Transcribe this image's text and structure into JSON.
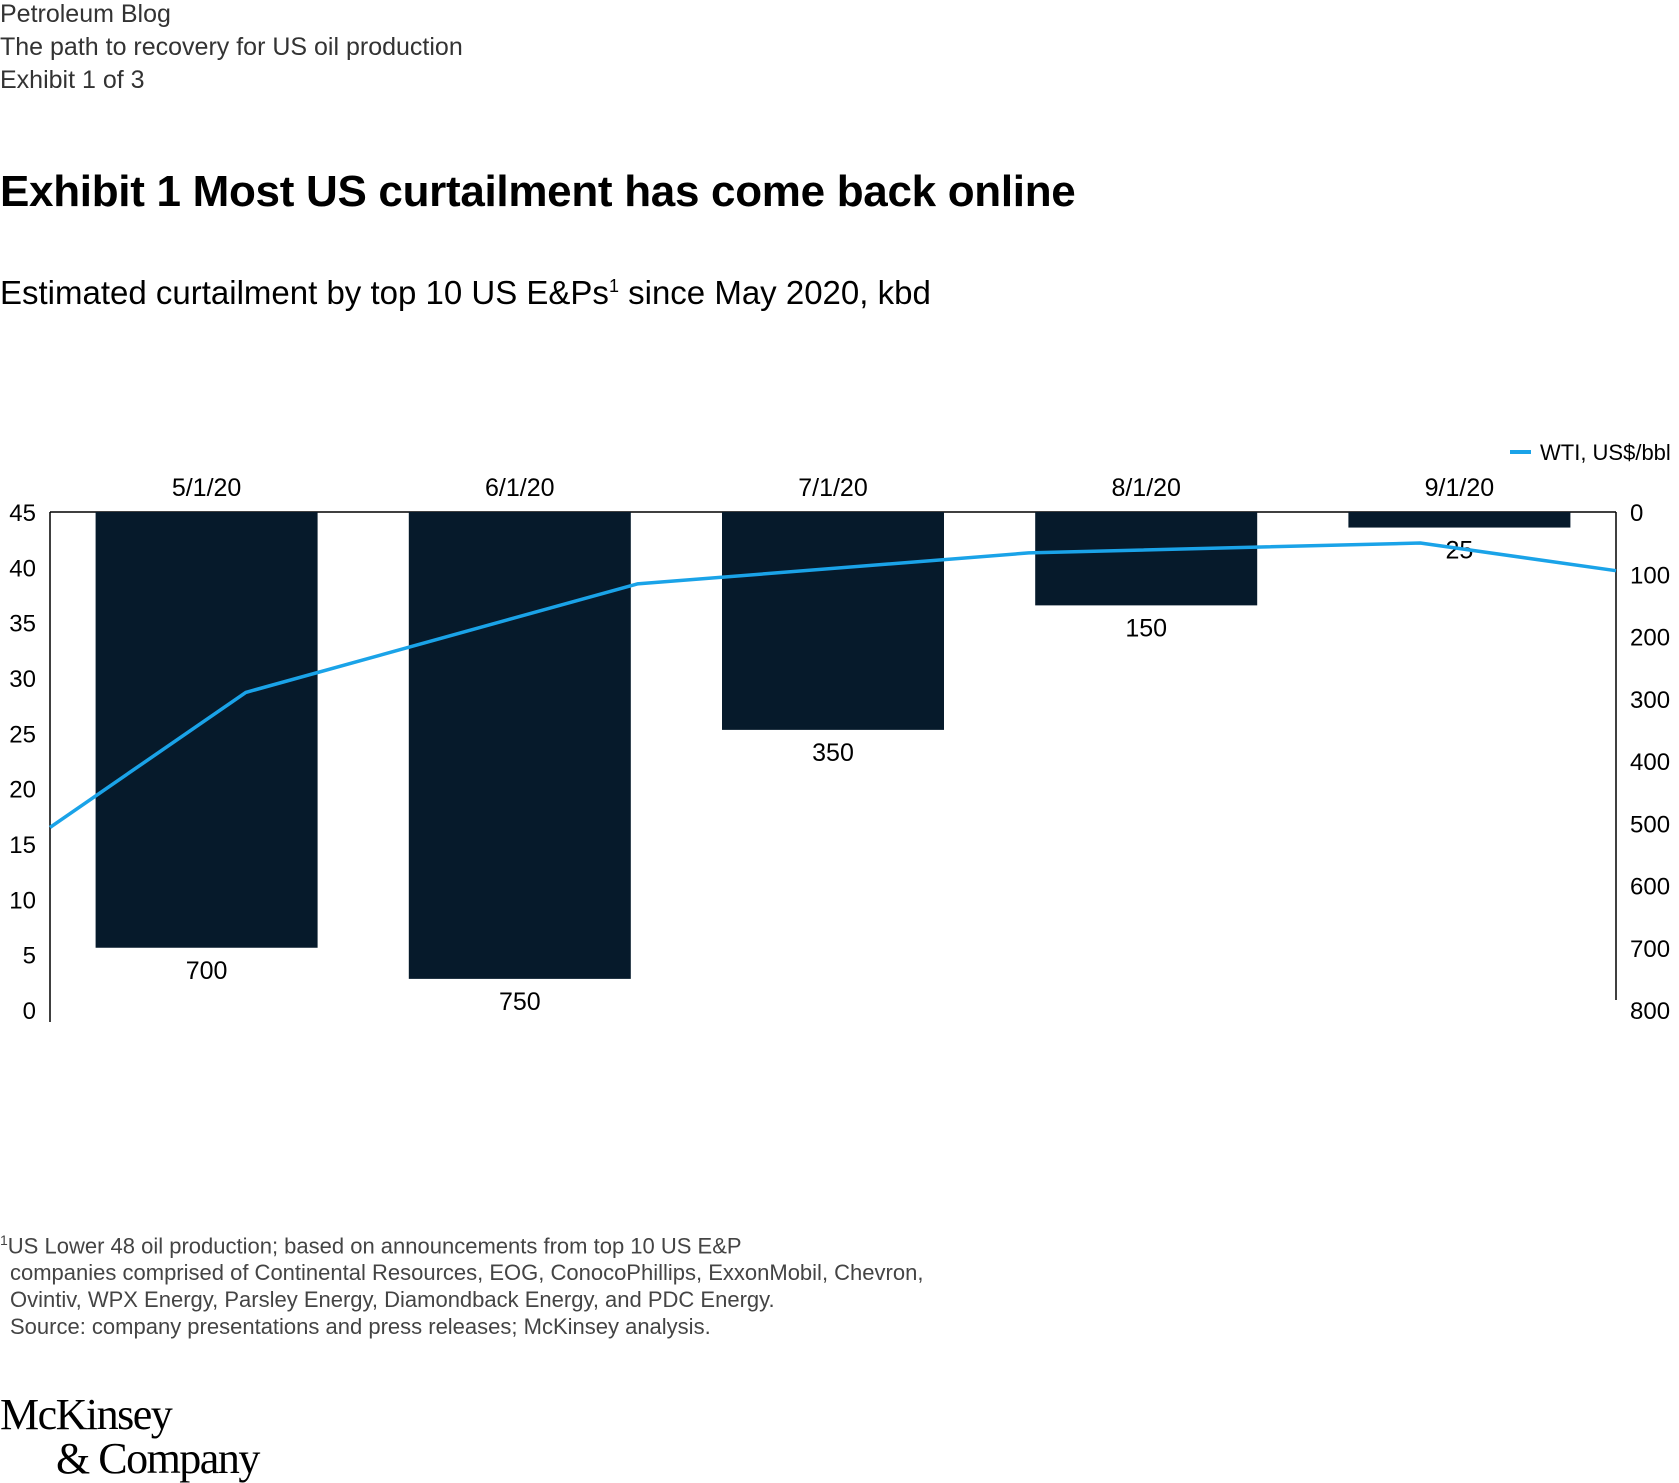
{
  "header": {
    "blog": "Petroleum Blog",
    "article": "The path to recovery for US oil production",
    "exhibit": "Exhibit 1 of 3"
  },
  "title": "Exhibit 1 Most US curtailment has come back online",
  "subtitle": {
    "text": "Estimated curtailment by top 10 US E&Ps",
    "sup": "1",
    "suffix": " since May 2020, kbd"
  },
  "chart_data": {
    "type": "bar+line",
    "categories": [
      "5/1/20",
      "6/1/20",
      "7/1/20",
      "8/1/20",
      "9/1/20"
    ],
    "bars": {
      "name": "Curtailment, kbd",
      "axis": "right",
      "orientation": "hanging from top",
      "values": [
        700,
        750,
        350,
        150,
        25
      ],
      "labels": [
        "700",
        "750",
        "350",
        "150",
        "25"
      ],
      "color": "#061a2b"
    },
    "line": {
      "name": "WTI, US$/bbl",
      "axis": "left",
      "color": "#1aa3e8",
      "x": [
        0,
        0.5,
        1.5,
        2.5,
        3.5,
        4.0
      ],
      "values": [
        16.5,
        28.7,
        38.5,
        41.3,
        42.2,
        39.7
      ]
    },
    "left_axis": {
      "ylim": [
        0,
        45
      ],
      "ticks": [
        "0",
        "5",
        "10",
        "15",
        "20",
        "25",
        "30",
        "35",
        "40",
        "45"
      ]
    },
    "right_axis": {
      "ylim": [
        0,
        800
      ],
      "inverted": true,
      "ticks": [
        "0",
        "100",
        "200",
        "300",
        "400",
        "500",
        "600",
        "700",
        "800"
      ]
    },
    "legend": {
      "label": "WTI, US$/bbl",
      "position": "top-right"
    }
  },
  "footnotes": [
    "US Lower 48 oil production; based on announcements from top 10 US E&P",
    "companies comprised of Continental Resources, EOG, ConocoPhillips, ExxonMobil, Chevron,",
    "Ovintiv, WPX Energy, Parsley Energy, Diamondback Energy, and PDC Energy.",
    "Source: company presentations and press releases; McKinsey analysis."
  ],
  "footnote_marker": "1",
  "logo": {
    "line1": "McKinsey",
    "line2": "& Company"
  }
}
